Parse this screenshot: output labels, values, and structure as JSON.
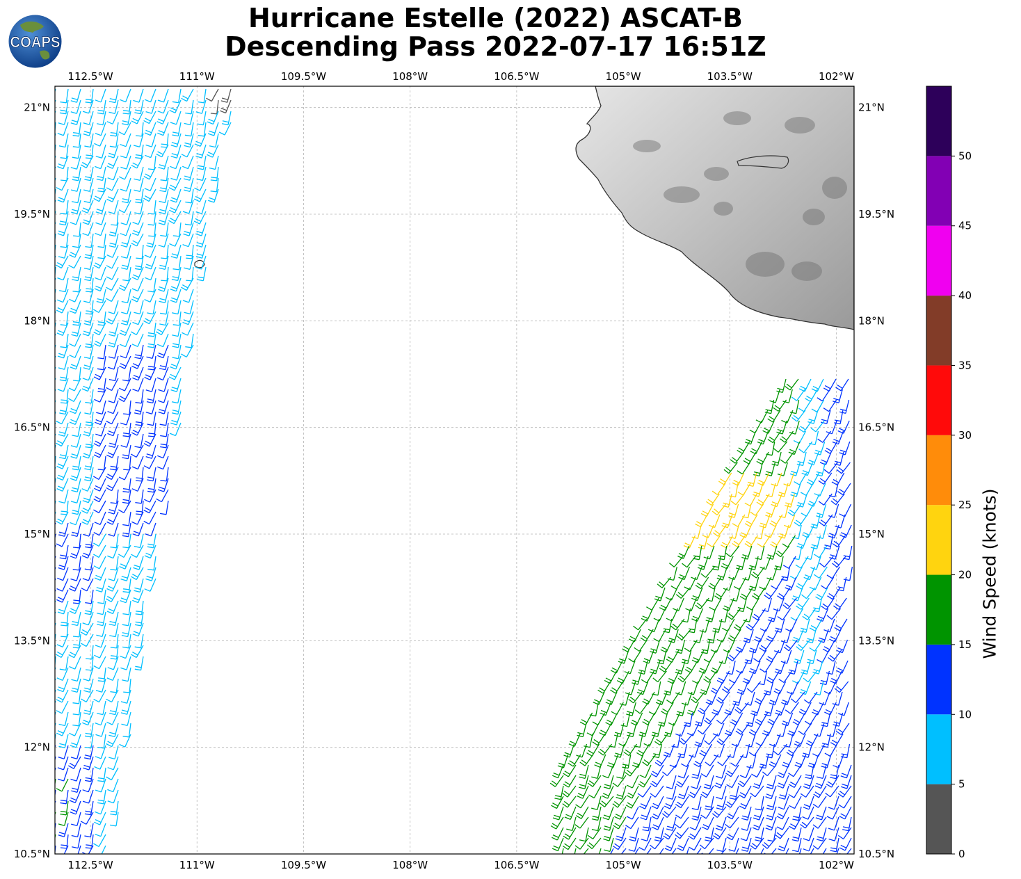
{
  "title": {
    "line1": "Hurricane Estelle (2022) ASCAT-B",
    "line2": "Descending Pass 2022-07-17 16:51Z"
  },
  "logo": {
    "text": "COAPS",
    "ocean_color": "#1a5ba8",
    "land_color": "#6a8f3c"
  },
  "map": {
    "lon_range": [
      -113,
      -101.75
    ],
    "lat_range": [
      10.5,
      21.3
    ],
    "lon_ticks": [
      -112.5,
      -111,
      -109.5,
      -108,
      -106.5,
      -105,
      -103.5,
      -102
    ],
    "lon_tick_labels": [
      "112.5°W",
      "111°W",
      "109.5°W",
      "108°W",
      "106.5°W",
      "105°W",
      "103.5°W",
      "102°W"
    ],
    "lat_ticks": [
      21,
      19.5,
      18,
      16.5,
      15,
      13.5,
      12,
      10.5
    ],
    "lat_tick_labels": [
      "21°N",
      "19.5°N",
      "18°N",
      "16.5°N",
      "15°N",
      "13.5°N",
      "12°N",
      "10.5°N"
    ],
    "grid": true,
    "land": "grayscale terrain (Mexico)"
  },
  "colorbar": {
    "label": "Wind Speed (knots)",
    "tick_labels": [
      "0",
      "5",
      "10",
      "15",
      "20",
      "25",
      "30",
      "35",
      "40",
      "45",
      "50"
    ],
    "bins": [
      {
        "range": [
          0,
          5
        ],
        "color": "#555555"
      },
      {
        "range": [
          5,
          10
        ],
        "color": "#00bfff"
      },
      {
        "range": [
          10,
          15
        ],
        "color": "#0033ff"
      },
      {
        "range": [
          15,
          20
        ],
        "color": "#009400"
      },
      {
        "range": [
          20,
          25
        ],
        "color": "#ffd40f"
      },
      {
        "range": [
          25,
          30
        ],
        "color": "#ff8c0a"
      },
      {
        "range": [
          30,
          35
        ],
        "color": "#ff0a0a"
      },
      {
        "range": [
          35,
          40
        ],
        "color": "#823c28"
      },
      {
        "range": [
          40,
          45
        ],
        "color": "#f000f0"
      },
      {
        "range": [
          45,
          50
        ],
        "color": "#8200b4"
      },
      {
        "range": [
          50,
          55
        ],
        "color": "#2d005a"
      }
    ]
  }
}
